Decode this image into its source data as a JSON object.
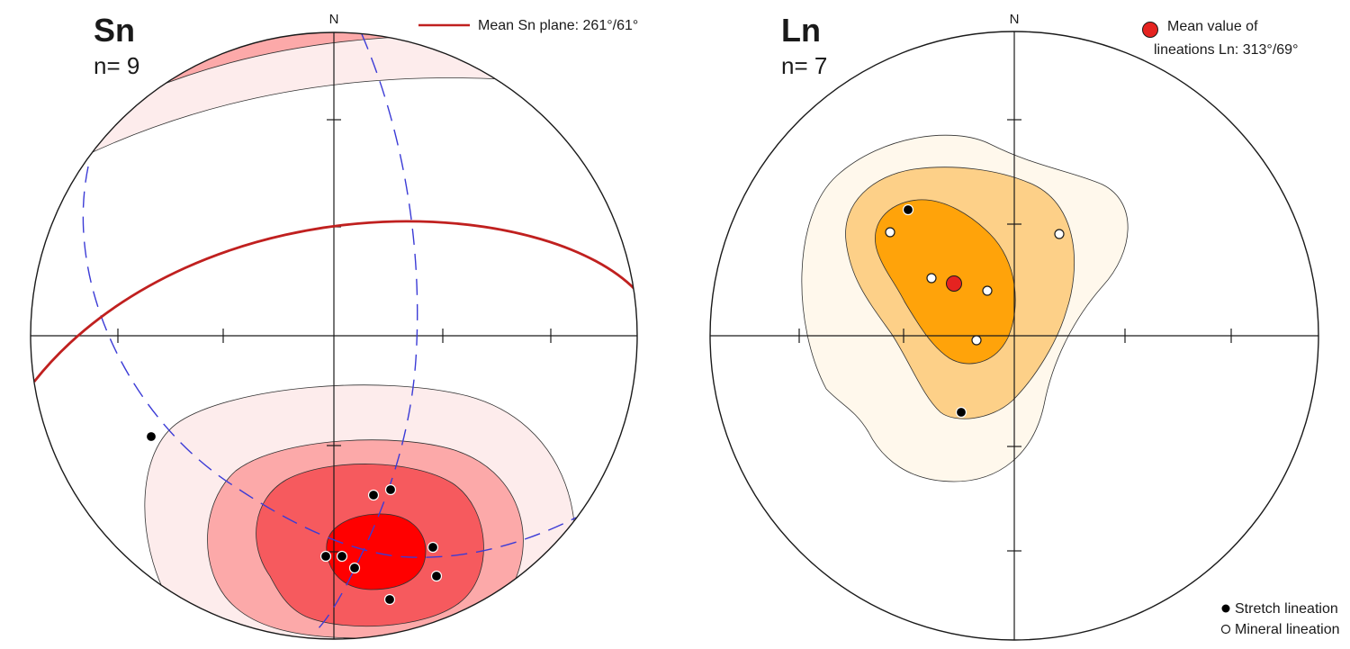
{
  "colors": {
    "sn_title": "#b31b1b",
    "ln_title": "#e8a531",
    "mean_plane": "#c0201f",
    "great_circle": "#3b3bd6",
    "mean_point": "#e52320",
    "sn_contours": [
      "#fdecec",
      "#fca9a9",
      "#f65a5e",
      "#ff0000"
    ],
    "ln_contours": [
      "#fff8ec",
      "#fdd088",
      "#ffa30a"
    ]
  },
  "sn": {
    "title": "Sn",
    "count_label": "n= 9",
    "north_label": "N",
    "legend": {
      "label": "Mean Sn plane: 261°/61°",
      "icon": "red-line-icon"
    }
  },
  "ln": {
    "title": "Ln",
    "count_label": "n= 7",
    "north_label": "N",
    "mean_legend": {
      "line1": "Mean value of",
      "line2": "lineations Ln: 313°/69°",
      "icon": "red-dot-icon"
    },
    "legend_items": [
      {
        "label": "Stretch lineation",
        "icon": "filled-dot-icon"
      },
      {
        "label": "Mineral lineation",
        "icon": "open-dot-icon"
      }
    ]
  }
}
